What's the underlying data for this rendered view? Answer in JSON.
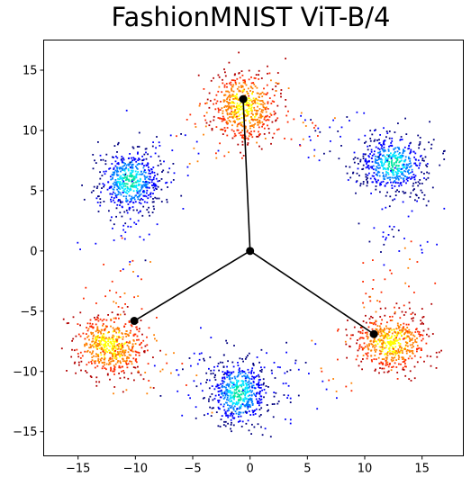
{
  "chart_data": {
    "type": "scatter",
    "title": "FashionMNIST ViT-B/4",
    "xlabel": "",
    "ylabel": "",
    "xlim": [
      -18,
      18.6
    ],
    "ylim": [
      -17,
      17.5
    ],
    "x_ticks": [
      -15,
      -10,
      -5,
      0,
      5,
      10,
      15
    ],
    "y_ticks": [
      -15,
      -10,
      -5,
      0,
      5,
      10,
      15
    ],
    "grid": false,
    "legend": "none",
    "colormap": [
      "#00007f",
      "#0000ff",
      "#007fff",
      "#00e5ff",
      "#00e6a0",
      "#7fff7f",
      "#ffff00",
      "#ff7f00",
      "#ff2a00",
      "#b20000"
    ],
    "hub": {
      "x": 0,
      "y": 0
    },
    "class_centers": [
      {
        "x": -0.6,
        "y": 12.6
      },
      {
        "x": -10.1,
        "y": -5.8
      },
      {
        "x": 10.8,
        "y": -6.9
      }
    ],
    "line_color": "#000000",
    "clusters": [
      {
        "name": "",
        "x": -0.5,
        "y": 12.0,
        "sx": 1.8,
        "sy": 1.8,
        "palette": "warm"
      },
      {
        "name": "",
        "x": 12.5,
        "y": 7.2,
        "sx": 1.9,
        "sy": 1.6,
        "palette": "cool"
      },
      {
        "name": "",
        "x": -10.5,
        "y": 5.8,
        "sx": 1.8,
        "sy": 1.8,
        "palette": "cool"
      },
      {
        "name": "",
        "x": -12.2,
        "y": -7.8,
        "sx": 2.0,
        "sy": 1.6,
        "palette": "warm"
      },
      {
        "name": "",
        "x": -1.0,
        "y": -11.8,
        "sx": 1.6,
        "sy": 1.9,
        "palette": "cool"
      },
      {
        "name": "",
        "x": 12.4,
        "y": -7.6,
        "sx": 2.0,
        "sy": 1.5,
        "palette": "warm"
      }
    ]
  }
}
